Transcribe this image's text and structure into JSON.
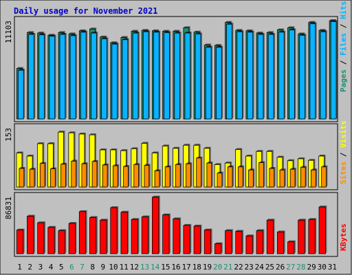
{
  "colors": {
    "background": "#c0c0c0",
    "border": "#000000",
    "title": "#0000cc",
    "hits": "#0ab2ff",
    "files": "#00b0ff",
    "pages": "#1d8f74",
    "visits": "#ffff00",
    "sites": "#ff8c00",
    "kbytes": "#ff0000",
    "weekend_label": "#1d8f74"
  },
  "chart_data": {
    "type": "bar",
    "title": "Daily usage for November 2021",
    "categories": [
      "1",
      "2",
      "3",
      "4",
      "5",
      "6",
      "7",
      "8",
      "9",
      "10",
      "11",
      "12",
      "13",
      "14",
      "15",
      "16",
      "17",
      "18",
      "19",
      "20",
      "21",
      "22",
      "23",
      "24",
      "25",
      "26",
      "27",
      "28",
      "29",
      "30",
      "31"
    ],
    "weekend_days": [
      "6",
      "7",
      "13",
      "14",
      "20",
      "21",
      "27",
      "28"
    ],
    "panels": [
      {
        "max_label": "11103",
        "ylim": [
          0,
          11103
        ],
        "legend": [
          "Pages",
          "Files",
          "Hits"
        ],
        "series": [
          {
            "name": "Hits",
            "values": [
              5700,
              9750,
              9700,
              9450,
              9750,
              9600,
              9950,
              10150,
              9250,
              8600,
              9200,
              9900,
              10000,
              9950,
              9900,
              9900,
              10300,
              9800,
              8350,
              8300,
              10900,
              10000,
              9950,
              9700,
              9750,
              10050,
              10300,
              9600,
              10900,
              10000,
              11100
            ]
          },
          {
            "name": "Files",
            "values": [
              5500,
              9550,
              9500,
              9350,
              9550,
              9400,
              9800,
              9700,
              9050,
              8450,
              8950,
              9700,
              9850,
              9800,
              9750,
              9700,
              9700,
              9600,
              8100,
              8100,
              10700,
              9850,
              9800,
              9550,
              9550,
              9800,
              10050,
              9450,
              10750,
              9850,
              11000
            ]
          },
          {
            "name": "Pages",
            "values": [
              5700,
              9750,
              9700,
              9450,
              9750,
              9600,
              9950,
              10150,
              9250,
              8600,
              9200,
              9900,
              10000,
              9950,
              9900,
              9900,
              10300,
              9800,
              8350,
              8300,
              10900,
              10000,
              9950,
              9700,
              9750,
              10050,
              10300,
              9600,
              10900,
              10000,
              11100
            ]
          }
        ]
      },
      {
        "max_label": "153",
        "ylim": [
          0,
          153
        ],
        "legend": [
          "Sites",
          "Visits"
        ],
        "series": [
          {
            "name": "Visits",
            "values": [
              88,
              80,
              112,
              112,
              142,
              140,
              137,
              135,
              96,
              96,
              94,
              99,
              113,
              88,
              106,
              100,
              108,
              108,
              100,
              58,
              62,
              97,
              80,
              92,
              92,
              77,
              68,
              73,
              69,
              80,
              0
            ]
          },
          {
            "name": "Sites",
            "values": [
              48,
              46,
              61,
              47,
              59,
              67,
              60,
              66,
              57,
              55,
              53,
              58,
              56,
              42,
              52,
              58,
              60,
              75,
              62,
              36,
              52,
              52,
              44,
              63,
              48,
              44,
              46,
              51,
              44,
              52,
              0
            ]
          }
        ]
      },
      {
        "max_label": "86831",
        "ylim": [
          0,
          86831
        ],
        "legend": [
          "KBytes"
        ],
        "series": [
          {
            "name": "KBytes",
            "values": [
              36000,
              57000,
              47000,
              40000,
              35000,
              46000,
              64000,
              55000,
              51000,
              70000,
              63000,
              52000,
              56000,
              86000,
              59000,
              53000,
              43000,
              42000,
              36000,
              15000,
              35000,
              34000,
              27000,
              35000,
              51000,
              33000,
              18000,
              51000,
              52000,
              71000,
              0
            ]
          }
        ]
      }
    ]
  }
}
